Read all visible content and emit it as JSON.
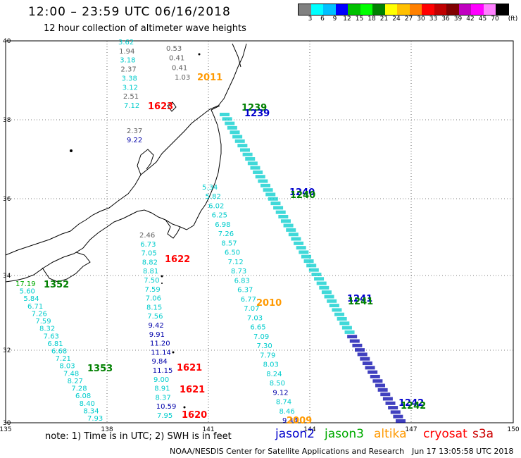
{
  "header": {
    "title": "12:00 – 23:59 UTC 06/16/2018",
    "subtitle": "12 hour collection of altimeter wave heights"
  },
  "colorbar": {
    "colors": [
      "#808080",
      "#00ffff",
      "#00c0ff",
      "#0000ff",
      "#00c000",
      "#00ff00",
      "#008000",
      "#ffff00",
      "#ffc000",
      "#ff8000",
      "#ff0000",
      "#c00000",
      "#800000",
      "#c000c0",
      "#ff00ff",
      "#ff80ff",
      "#000000"
    ],
    "labels": [
      "3",
      "6",
      "9",
      "12",
      "15",
      "18",
      "21",
      "24",
      "27",
      "30",
      "33",
      "36",
      "39",
      "42",
      "45",
      "70",
      "(ft)"
    ]
  },
  "map": {
    "lon_ticks": [
      "135",
      "138",
      "141",
      "144",
      "147",
      "150"
    ],
    "lat_ticks": [
      "40",
      "38",
      "36",
      "34",
      "32",
      "30"
    ],
    "time_labels": [
      {
        "text": "2011",
        "color": "#ff9900"
      },
      {
        "text": "1623",
        "color": "#ff0000"
      },
      {
        "text": "1239",
        "color": "#008000"
      },
      {
        "text": "1239",
        "color": "#0000cc"
      },
      {
        "text": "1240",
        "color": "#0000cc"
      },
      {
        "text": "1240",
        "color": "#008000"
      },
      {
        "text": "1622",
        "color": "#ff0000"
      },
      {
        "text": "1352",
        "color": "#008000"
      },
      {
        "text": "2010",
        "color": "#ff9900"
      },
      {
        "text": "1241",
        "color": "#0000cc"
      },
      {
        "text": "1241",
        "color": "#008000"
      },
      {
        "text": "1353",
        "color": "#008000"
      },
      {
        "text": "1621",
        "color": "#ff0000"
      },
      {
        "text": "1621",
        "color": "#ff0000"
      },
      {
        "text": "1242",
        "color": "#0000cc"
      },
      {
        "text": "1242",
        "color": "#008000"
      },
      {
        "text": "1620",
        "color": "#ff0000"
      },
      {
        "text": "2009",
        "color": "#ff9900"
      }
    ],
    "track_a": {
      "values": [
        "3.62",
        "1.94",
        "3.18",
        "2.37",
        "3.38",
        "3.12",
        "2.51",
        "7.12"
      ],
      "colors": [
        "#00cccc",
        "#606060",
        "#00cccc",
        "#606060",
        "#00cccc",
        "#00cccc",
        "#606060",
        "#00cccc"
      ]
    },
    "track_b": {
      "values": [
        "0.53",
        "0.41",
        "0.41",
        "1.03"
      ],
      "colors": [
        "#606060",
        "#606060",
        "#606060",
        "#606060"
      ]
    },
    "track_c": {
      "values": [
        "2.37",
        "9.22"
      ],
      "colors": [
        "#606060",
        "#0000aa"
      ]
    },
    "track_d": {
      "values": [
        "5.34",
        "5.82",
        "6.02",
        "6.25",
        "6.98",
        "7.26",
        "8.57",
        "6.50",
        "7.12",
        "8.73",
        "6.83",
        "6.37",
        "6.77",
        "7.07",
        "7.03",
        "6.65",
        "7.09",
        "7.30",
        "7.79",
        "8.03",
        "8.24",
        "8.50",
        "9.12",
        "8.74",
        "8.46",
        "9.44"
      ],
      "colors": [
        "#00cccc",
        "#00cccc",
        "#00cccc",
        "#00cccc",
        "#00cccc",
        "#00cccc",
        "#00cccc",
        "#00cccc",
        "#00cccc",
        "#00cccc",
        "#00cccc",
        "#00cccc",
        "#00cccc",
        "#00cccc",
        "#00cccc",
        "#00cccc",
        "#00cccc",
        "#00cccc",
        "#00cccc",
        "#00cccc",
        "#00cccc",
        "#00cccc",
        "#0000aa",
        "#00cccc",
        "#00cccc",
        "#0000aa"
      ]
    },
    "track_e": {
      "values": [
        "2.46",
        "6.73",
        "7.05",
        "8.82",
        "8.81",
        "7.50",
        "7.59",
        "7.06",
        "8.15",
        "7.56",
        "9.42",
        "9.91",
        "11.20",
        "11.14",
        "9.84",
        "11.15",
        "9.00",
        "8.91",
        "8.37",
        "10.59",
        "7.95"
      ],
      "colors": [
        "#606060",
        "#00cccc",
        "#00cccc",
        "#00cccc",
        "#00cccc",
        "#00cccc",
        "#00cccc",
        "#00cccc",
        "#00cccc",
        "#00cccc",
        "#0000aa",
        "#0000aa",
        "#0000aa",
        "#0000aa",
        "#0000aa",
        "#0000aa",
        "#00cccc",
        "#00cccc",
        "#00cccc",
        "#0000aa",
        "#00cccc"
      ]
    },
    "track_f": {
      "values": [
        "17.19",
        "5.60",
        "5.84",
        "6.71",
        "7.26",
        "7.59",
        "8.32",
        "7.63",
        "6.81",
        "6.68",
        "7.21",
        "8.03",
        "7.48",
        "8.27",
        "7.28",
        "6.08",
        "8.40",
        "8.34",
        "7.93"
      ],
      "colors": [
        "#00aa00",
        "#00cccc",
        "#00cccc",
        "#00cccc",
        "#00cccc",
        "#00cccc",
        "#00cccc",
        "#00cccc",
        "#00cccc",
        "#00cccc",
        "#00cccc",
        "#00cccc",
        "#00cccc",
        "#00cccc",
        "#00cccc",
        "#00cccc",
        "#00cccc",
        "#00cccc",
        "#00cccc"
      ]
    }
  },
  "footer": {
    "note": "note:  1) Time is in UTC;  2) SWH is in feet",
    "legend": [
      {
        "text": "jason2",
        "color": "#0000cc"
      },
      {
        "text": "jason3",
        "color": "#00aa00"
      },
      {
        "text": "altika",
        "color": "#ff9900"
      },
      {
        "text": "cryosat",
        "color": "#ff0000"
      },
      {
        "text": "s3a",
        "color": "#cc0000"
      }
    ],
    "credit": "NOAA/NESDIS Center for Satellite Applications and Research",
    "timestamp": "Jun 17 13:05:58 UTC 2018"
  }
}
